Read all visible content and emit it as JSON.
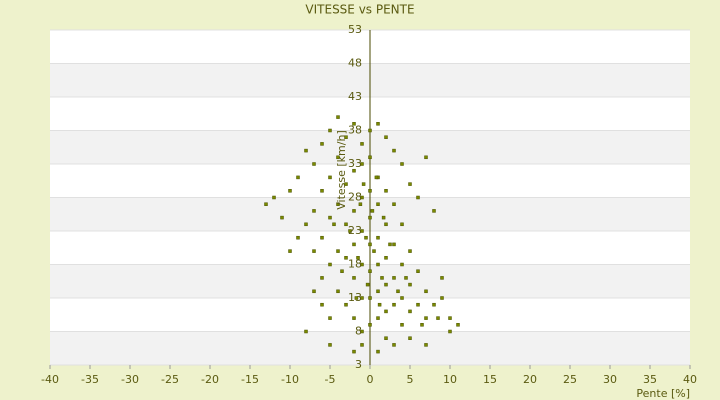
{
  "chart_data": {
    "type": "scatter",
    "title": "VITESSE vs PENTE",
    "x_label": "Pente [%]",
    "y_label": "Vitesse [km/h]",
    "x": [
      -13,
      -12,
      -11,
      -10,
      -9,
      -8,
      -7,
      -6,
      -5,
      -4,
      -3,
      -2,
      -1,
      0,
      1,
      2,
      3,
      4,
      5,
      6,
      7,
      8,
      9,
      10,
      11,
      -8,
      -5,
      -2,
      1,
      3,
      5,
      7,
      -6,
      -5,
      -5,
      -4,
      -4,
      -4,
      -3,
      -3,
      -3,
      -3,
      -2,
      -2,
      -2,
      -2,
      -2,
      -1,
      -1,
      -1,
      -1,
      -1,
      -1,
      0,
      0,
      0,
      0,
      0,
      0,
      0,
      1,
      1,
      1,
      1,
      1,
      1,
      2,
      2,
      2,
      2,
      2,
      3,
      3,
      3,
      3,
      4,
      4,
      4,
      4,
      5,
      5,
      5,
      6,
      6,
      7,
      7,
      8,
      -7,
      -7,
      -6,
      -6,
      -8,
      -9,
      -10,
      -5,
      -4,
      0.5,
      -0.5,
      1.5,
      -1.5,
      2.5,
      -2.5,
      0.3,
      -0.3,
      1.2,
      -1.2,
      3.5,
      -3.5,
      4.5,
      -4.5,
      6.5,
      8.5,
      9,
      10,
      -6,
      -7,
      -5,
      2,
      -1,
      0.8,
      -0.8,
      1.7,
      -1.7
    ],
    "values": [
      27,
      28,
      25,
      29,
      31,
      35,
      33,
      36,
      38,
      40,
      37,
      39,
      36,
      38,
      39,
      37,
      35,
      33,
      30,
      28,
      34,
      26,
      16,
      10,
      9,
      8,
      6,
      5,
      5,
      6,
      7,
      6,
      22,
      25,
      18,
      27,
      20,
      14,
      30,
      24,
      19,
      12,
      32,
      26,
      21,
      16,
      10,
      33,
      28,
      23,
      18,
      13,
      8,
      34,
      29,
      25,
      21,
      17,
      13,
      9,
      31,
      27,
      22,
      18,
      14,
      10,
      29,
      24,
      19,
      15,
      11,
      27,
      21,
      16,
      12,
      24,
      18,
      13,
      9,
      20,
      15,
      11,
      17,
      12,
      14,
      10,
      12,
      26,
      20,
      29,
      16,
      24,
      22,
      20,
      31,
      34,
      20,
      22,
      16,
      19,
      21,
      23,
      26,
      15,
      12,
      27,
      14,
      17,
      16,
      24,
      9,
      10,
      13,
      8,
      12,
      14,
      10,
      7,
      6,
      31,
      30,
      25,
      13
    ],
    "color": "#7a8a00",
    "xlim": [
      -40,
      40
    ],
    "xticks": [
      -40,
      -35,
      -30,
      -25,
      -20,
      -15,
      -10,
      -5,
      0,
      5,
      10,
      15,
      20,
      25,
      30,
      35,
      40
    ],
    "ylim": [
      3,
      53
    ],
    "yticks": [
      3,
      8,
      13,
      18,
      23,
      28,
      33,
      38,
      43,
      48,
      53
    ],
    "grid": true
  }
}
